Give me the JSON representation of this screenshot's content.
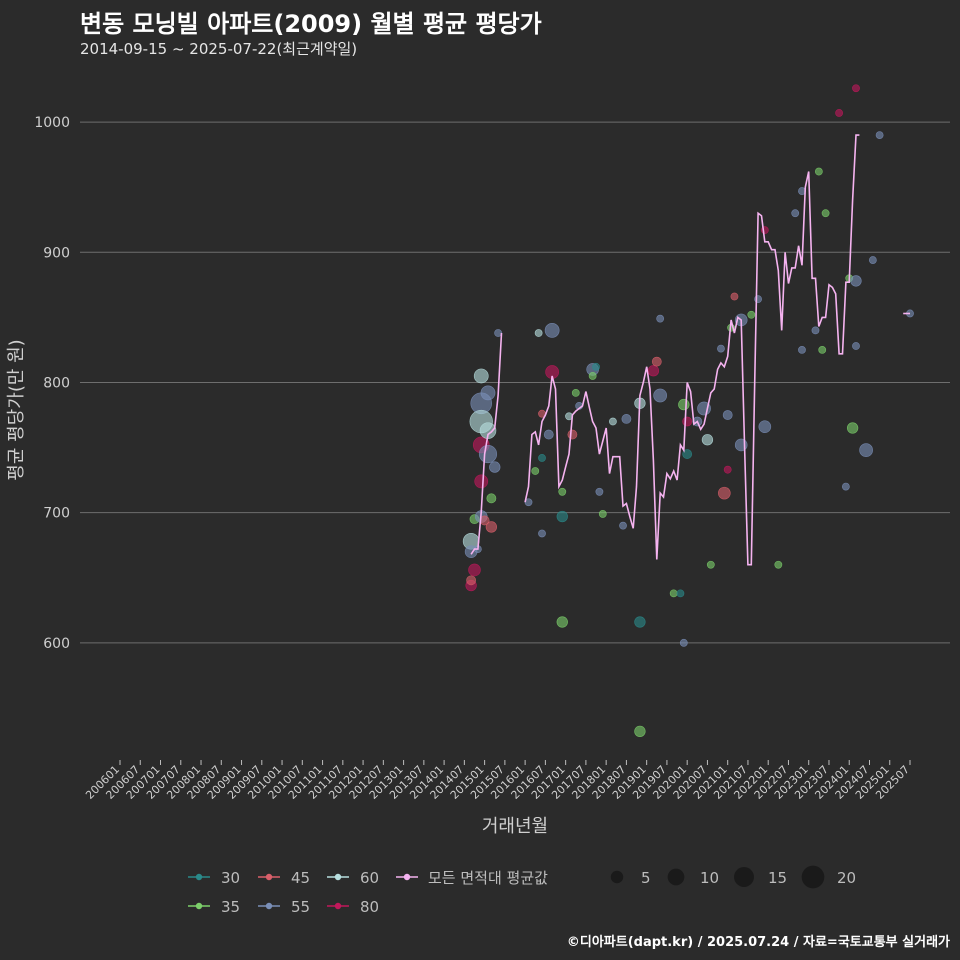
{
  "header": {
    "title": "변동 모닝빌 아파트(2009) 월별 평균 평당가",
    "subtitle": "2014-09-15 ~ 2025-07-22(최근계약일)"
  },
  "footer": {
    "credit": "©디아파트(dapt.kr) / 2025.07.24 / 자료=국토교통부 실거래가"
  },
  "chart_data": {
    "type": "scatter",
    "xlabel": "거래년월",
    "ylabel": "평균 평당가(만 원)",
    "ylim": [
      510,
      1040
    ],
    "yticks": [
      600,
      700,
      800,
      900,
      1000
    ],
    "x_range": [
      "2006-01",
      "2025-07"
    ],
    "xtick_labels": [
      "200601",
      "200607",
      "200701",
      "200707",
      "200801",
      "200807",
      "200901",
      "200907",
      "201001",
      "201007",
      "201101",
      "201107",
      "201201",
      "201207",
      "201301",
      "201307",
      "201401",
      "201407",
      "201501",
      "201507",
      "201601",
      "201607",
      "201701",
      "201707",
      "201801",
      "201807",
      "201901",
      "201907",
      "202001",
      "202007",
      "202101",
      "202107",
      "202201",
      "202207",
      "202301",
      "202307",
      "202401",
      "202407",
      "202501",
      "202507"
    ],
    "grid": "horizontal",
    "legend_position": "bottom",
    "size_legend": {
      "title": "",
      "values": [
        5,
        10,
        15,
        20
      ]
    },
    "area_series": [
      {
        "name": "30",
        "color": "#2a8a8a"
      },
      {
        "name": "35",
        "color": "#7ccf6a"
      },
      {
        "name": "45",
        "color": "#d95f6a"
      },
      {
        "name": "55",
        "color": "#7a8fb8"
      },
      {
        "name": "60",
        "color": "#b8e0e0"
      },
      {
        "name": "80",
        "color": "#c2185b"
      }
    ],
    "average_series": {
      "name": "모든 면적대 평균값",
      "color": "#f5b3f0"
    },
    "points": [
      {
        "area": "60",
        "x": "2014-09",
        "y": 678,
        "n": 8
      },
      {
        "area": "80",
        "x": "2014-09",
        "y": 644,
        "n": 3
      },
      {
        "area": "45",
        "x": "2014-09",
        "y": 648,
        "n": 2
      },
      {
        "area": "55",
        "x": "2014-09",
        "y": 670,
        "n": 4
      },
      {
        "area": "35",
        "x": "2014-10",
        "y": 695,
        "n": 2
      },
      {
        "area": "80",
        "x": "2014-10",
        "y": 656,
        "n": 4
      },
      {
        "area": "55",
        "x": "2014-11",
        "y": 672,
        "n": 1
      },
      {
        "area": "60",
        "x": "2014-12",
        "y": 805,
        "n": 6
      },
      {
        "area": "55",
        "x": "2014-12",
        "y": 784,
        "n": 15
      },
      {
        "area": "60",
        "x": "2014-12",
        "y": 770,
        "n": 18
      },
      {
        "area": "80",
        "x": "2014-12",
        "y": 752,
        "n": 8
      },
      {
        "area": "80",
        "x": "2014-12",
        "y": 724,
        "n": 5
      },
      {
        "area": "55",
        "x": "2014-12",
        "y": 697,
        "n": 4
      },
      {
        "area": "45",
        "x": "2015-01",
        "y": 694,
        "n": 2
      },
      {
        "area": "55",
        "x": "2015-02",
        "y": 745,
        "n": 10
      },
      {
        "area": "60",
        "x": "2015-02",
        "y": 763,
        "n": 8
      },
      {
        "area": "55",
        "x": "2015-02",
        "y": 792,
        "n": 6
      },
      {
        "area": "35",
        "x": "2015-03",
        "y": 711,
        "n": 2
      },
      {
        "area": "45",
        "x": "2015-03",
        "y": 689,
        "n": 3
      },
      {
        "area": "55",
        "x": "2015-04",
        "y": 735,
        "n": 3
      },
      {
        "area": "55",
        "x": "2015-05",
        "y": 838,
        "n": 1
      },
      {
        "area": "55",
        "x": "2016-02",
        "y": 708,
        "n": 1
      },
      {
        "area": "35",
        "x": "2016-04",
        "y": 732,
        "n": 1
      },
      {
        "area": "60",
        "x": "2016-05",
        "y": 838,
        "n": 1
      },
      {
        "area": "30",
        "x": "2016-06",
        "y": 742,
        "n": 1
      },
      {
        "area": "55",
        "x": "2016-06",
        "y": 684,
        "n": 1
      },
      {
        "area": "45",
        "x": "2016-06",
        "y": 776,
        "n": 1
      },
      {
        "area": "55",
        "x": "2016-09",
        "y": 840,
        "n": 6
      },
      {
        "area": "80",
        "x": "2016-09",
        "y": 808,
        "n": 5
      },
      {
        "area": "55",
        "x": "2016-08",
        "y": 760,
        "n": 2
      },
      {
        "area": "35",
        "x": "2016-12",
        "y": 716,
        "n": 1
      },
      {
        "area": "30",
        "x": "2016-12",
        "y": 697,
        "n": 3
      },
      {
        "area": "35",
        "x": "2016-12",
        "y": 616,
        "n": 3
      },
      {
        "area": "60",
        "x": "2017-02",
        "y": 774,
        "n": 1
      },
      {
        "area": "45",
        "x": "2017-03",
        "y": 760,
        "n": 2
      },
      {
        "area": "35",
        "x": "2017-04",
        "y": 792,
        "n": 1
      },
      {
        "area": "55",
        "x": "2017-05",
        "y": 782,
        "n": 1
      },
      {
        "area": "55",
        "x": "2017-09",
        "y": 810,
        "n": 4
      },
      {
        "area": "35",
        "x": "2017-09",
        "y": 805,
        "n": 1
      },
      {
        "area": "30",
        "x": "2017-10",
        "y": 812,
        "n": 1
      },
      {
        "area": "55",
        "x": "2017-11",
        "y": 716,
        "n": 1
      },
      {
        "area": "35",
        "x": "2017-12",
        "y": 699,
        "n": 1
      },
      {
        "area": "60",
        "x": "2018-03",
        "y": 770,
        "n": 1
      },
      {
        "area": "55",
        "x": "2018-06",
        "y": 690,
        "n": 1
      },
      {
        "area": "55",
        "x": "2018-07",
        "y": 772,
        "n": 2
      },
      {
        "area": "60",
        "x": "2018-11",
        "y": 784,
        "n": 3
      },
      {
        "area": "30",
        "x": "2018-11",
        "y": 616,
        "n": 3
      },
      {
        "area": "35",
        "x": "2018-11",
        "y": 532,
        "n": 3
      },
      {
        "area": "80",
        "x": "2019-03",
        "y": 809,
        "n": 3
      },
      {
        "area": "45",
        "x": "2019-04",
        "y": 816,
        "n": 2
      },
      {
        "area": "55",
        "x": "2019-05",
        "y": 790,
        "n": 5
      },
      {
        "area": "55",
        "x": "2019-05",
        "y": 849,
        "n": 1
      },
      {
        "area": "35",
        "x": "2019-09",
        "y": 638,
        "n": 1
      },
      {
        "area": "30",
        "x": "2019-11",
        "y": 638,
        "n": 1
      },
      {
        "area": "55",
        "x": "2019-12",
        "y": 600,
        "n": 1
      },
      {
        "area": "35",
        "x": "2019-12",
        "y": 783,
        "n": 3
      },
      {
        "area": "30",
        "x": "2020-01",
        "y": 745,
        "n": 2
      },
      {
        "area": "80",
        "x": "2020-01",
        "y": 770,
        "n": 2
      },
      {
        "area": "55",
        "x": "2020-04",
        "y": 770,
        "n": 2
      },
      {
        "area": "55",
        "x": "2020-06",
        "y": 780,
        "n": 5
      },
      {
        "area": "60",
        "x": "2020-07",
        "y": 756,
        "n": 3
      },
      {
        "area": "35",
        "x": "2020-08",
        "y": 660,
        "n": 1
      },
      {
        "area": "55",
        "x": "2020-11",
        "y": 826,
        "n": 1
      },
      {
        "area": "45",
        "x": "2020-12",
        "y": 715,
        "n": 4
      },
      {
        "area": "80",
        "x": "2021-01",
        "y": 733,
        "n": 1
      },
      {
        "area": "55",
        "x": "2021-01",
        "y": 775,
        "n": 2
      },
      {
        "area": "35",
        "x": "2021-02",
        "y": 842,
        "n": 1
      },
      {
        "area": "45",
        "x": "2021-03",
        "y": 866,
        "n": 1
      },
      {
        "area": "55",
        "x": "2021-05",
        "y": 848,
        "n": 4
      },
      {
        "area": "55",
        "x": "2021-05",
        "y": 752,
        "n": 4
      },
      {
        "area": "35",
        "x": "2021-08",
        "y": 852,
        "n": 1
      },
      {
        "area": "55",
        "x": "2021-10",
        "y": 864,
        "n": 1
      },
      {
        "area": "80",
        "x": "2021-12",
        "y": 917,
        "n": 1
      },
      {
        "area": "55",
        "x": "2021-12",
        "y": 766,
        "n": 4
      },
      {
        "area": "35",
        "x": "2022-04",
        "y": 660,
        "n": 1
      },
      {
        "area": "55",
        "x": "2022-09",
        "y": 930,
        "n": 1
      },
      {
        "area": "55",
        "x": "2022-11",
        "y": 947,
        "n": 1
      },
      {
        "area": "55",
        "x": "2022-11",
        "y": 825,
        "n": 1
      },
      {
        "area": "55",
        "x": "2023-03",
        "y": 840,
        "n": 1
      },
      {
        "area": "35",
        "x": "2023-04",
        "y": 962,
        "n": 1
      },
      {
        "area": "35",
        "x": "2023-06",
        "y": 930,
        "n": 1
      },
      {
        "area": "35",
        "x": "2023-05",
        "y": 825,
        "n": 1
      },
      {
        "area": "80",
        "x": "2023-10",
        "y": 1007,
        "n": 1
      },
      {
        "area": "55",
        "x": "2023-12",
        "y": 720,
        "n": 1
      },
      {
        "area": "35",
        "x": "2024-01",
        "y": 880,
        "n": 1
      },
      {
        "area": "35",
        "x": "2024-02",
        "y": 765,
        "n": 3
      },
      {
        "area": "55",
        "x": "2024-03",
        "y": 878,
        "n": 3
      },
      {
        "area": "80",
        "x": "2024-03",
        "y": 1026,
        "n": 1
      },
      {
        "area": "55",
        "x": "2024-03",
        "y": 828,
        "n": 1
      },
      {
        "area": "55",
        "x": "2024-06",
        "y": 748,
        "n": 5
      },
      {
        "area": "55",
        "x": "2024-08",
        "y": 894,
        "n": 1
      },
      {
        "area": "55",
        "x": "2024-10",
        "y": 990,
        "n": 1
      },
      {
        "area": "55",
        "x": "2025-07",
        "y": 853,
        "n": 1
      }
    ],
    "average_line": [
      [
        [
          "2014-09",
          668
        ],
        [
          "2014-10",
          672
        ],
        [
          "2014-11",
          672
        ],
        [
          "2014-12",
          700
        ],
        [
          "2015-01",
          745
        ],
        [
          "2015-02",
          760
        ],
        [
          "2015-03",
          762
        ],
        [
          "2015-04",
          765
        ],
        [
          "2015-05",
          790
        ],
        [
          "2015-06",
          838
        ]
      ],
      [
        [
          "2016-01",
          708
        ],
        [
          "2016-02",
          720
        ],
        [
          "2016-03",
          760
        ],
        [
          "2016-04",
          762
        ],
        [
          "2016-05",
          752
        ],
        [
          "2016-06",
          770
        ],
        [
          "2016-07",
          775
        ],
        [
          "2016-08",
          782
        ],
        [
          "2016-09",
          805
        ],
        [
          "2016-10",
          795
        ],
        [
          "2016-11",
          720
        ],
        [
          "2016-12",
          725
        ],
        [
          "2017-01",
          735
        ],
        [
          "2017-02",
          745
        ],
        [
          "2017-03",
          775
        ],
        [
          "2017-04",
          778
        ],
        [
          "2017-05",
          780
        ],
        [
          "2017-06",
          782
        ],
        [
          "2017-07",
          793
        ],
        [
          "2017-08",
          781
        ],
        [
          "2017-09",
          770
        ],
        [
          "2017-10",
          765
        ],
        [
          "2017-11",
          745
        ],
        [
          "2017-12",
          755
        ],
        [
          "2018-01",
          765
        ],
        [
          "2018-02",
          730
        ],
        [
          "2018-03",
          743
        ],
        [
          "2018-04",
          743
        ],
        [
          "2018-05",
          743
        ],
        [
          "2018-06",
          705
        ],
        [
          "2018-07",
          707
        ],
        [
          "2018-08",
          697
        ],
        [
          "2018-09",
          688
        ],
        [
          "2018-10",
          720
        ],
        [
          "2018-11",
          790
        ],
        [
          "2018-12",
          800
        ],
        [
          "2019-01",
          812
        ],
        [
          "2019-02",
          795
        ],
        [
          "2019-03",
          740
        ],
        [
          "2019-04",
          664
        ],
        [
          "2019-05",
          715
        ],
        [
          "2019-06",
          712
        ],
        [
          "2019-07",
          730
        ],
        [
          "2019-08",
          726
        ],
        [
          "2019-09",
          732
        ],
        [
          "2019-10",
          725
        ],
        [
          "2019-11",
          752
        ],
        [
          "2019-12",
          748
        ],
        [
          "2020-01",
          800
        ],
        [
          "2020-02",
          793
        ],
        [
          "2020-03",
          768
        ],
        [
          "2020-04",
          770
        ],
        [
          "2020-05",
          764
        ],
        [
          "2020-06",
          768
        ],
        [
          "2020-07",
          780
        ],
        [
          "2020-08",
          792
        ],
        [
          "2020-09",
          795
        ],
        [
          "2020-10",
          810
        ],
        [
          "2020-11",
          815
        ],
        [
          "2020-12",
          812
        ],
        [
          "2021-01",
          820
        ],
        [
          "2021-02",
          848
        ],
        [
          "2021-03",
          838
        ],
        [
          "2021-04",
          850
        ],
        [
          "2021-05",
          848
        ],
        [
          "2021-06",
          750
        ],
        [
          "2021-07",
          660
        ],
        [
          "2021-08",
          660
        ],
        [
          "2021-09",
          800
        ],
        [
          "2021-10",
          930
        ],
        [
          "2021-11",
          928
        ],
        [
          "2021-12",
          908
        ],
        [
          "2022-01",
          908
        ],
        [
          "2022-02",
          902
        ],
        [
          "2022-03",
          902
        ],
        [
          "2022-04",
          886
        ],
        [
          "2022-05",
          840
        ],
        [
          "2022-06",
          900
        ],
        [
          "2022-07",
          876
        ],
        [
          "2022-08",
          888
        ],
        [
          "2022-09",
          888
        ],
        [
          "2022-10",
          905
        ],
        [
          "2022-11",
          890
        ],
        [
          "2022-12",
          950
        ],
        [
          "2023-01",
          962
        ],
        [
          "2023-02",
          880
        ],
        [
          "2023-03",
          880
        ],
        [
          "2023-04",
          843
        ],
        [
          "2023-05",
          850
        ],
        [
          "2023-06",
          850
        ],
        [
          "2023-07",
          875
        ],
        [
          "2023-08",
          873
        ],
        [
          "2023-09",
          868
        ],
        [
          "2023-10",
          822
        ],
        [
          "2023-11",
          822
        ],
        [
          "2023-12",
          877
        ],
        [
          "2024-01",
          877
        ],
        [
          "2024-02",
          940
        ],
        [
          "2024-03",
          990
        ],
        [
          "2024-04",
          990
        ]
      ],
      [
        [
          "2025-05",
          853
        ],
        [
          "2025-07",
          853
        ]
      ]
    ]
  }
}
